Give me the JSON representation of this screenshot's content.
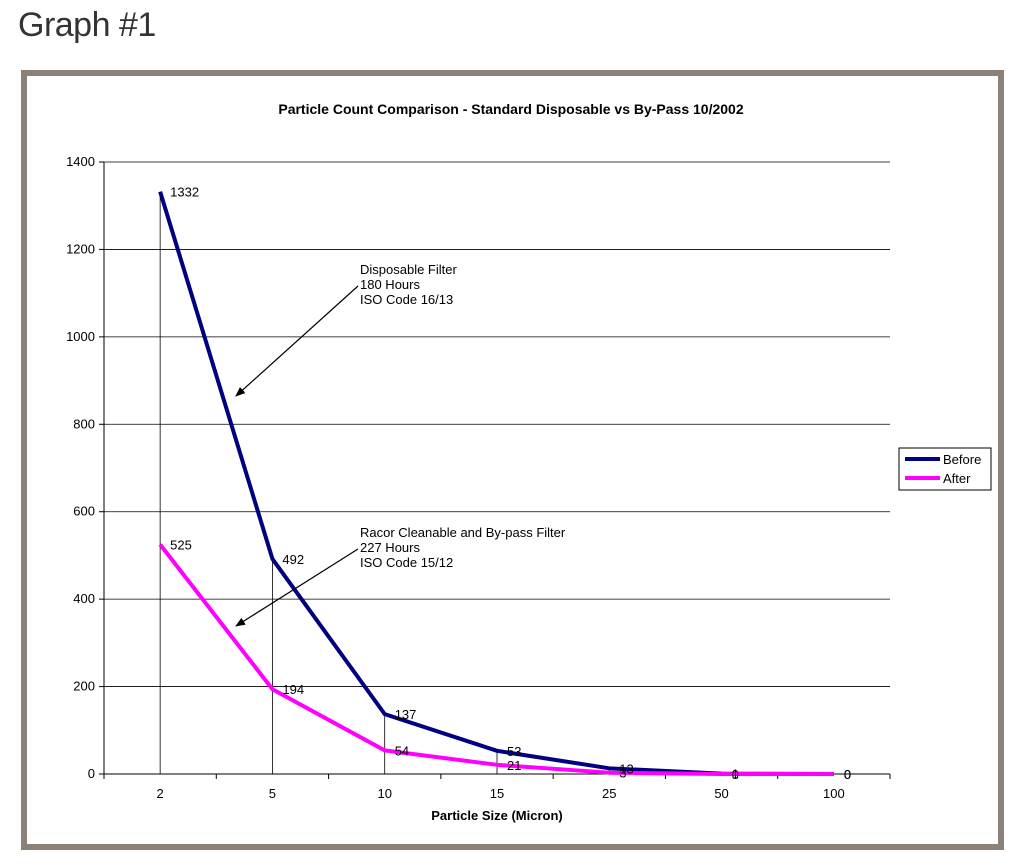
{
  "page": {
    "heading": "Graph #1"
  },
  "chart_data": {
    "type": "line",
    "title": "Particle Count Comparison - Standard Disposable vs By-Pass 10/2002",
    "xlabel": "Particle Size (Micron)",
    "ylabel": "",
    "categories": [
      "2",
      "5",
      "10",
      "15",
      "25",
      "50",
      "100"
    ],
    "ylim": [
      0,
      1400
    ],
    "yticks": [
      0,
      200,
      400,
      600,
      800,
      1000,
      1200,
      1400
    ],
    "grid": true,
    "legend_position": "right",
    "series": [
      {
        "name": "Before",
        "color": "#000080",
        "values": [
          1332,
          492,
          137,
          53,
          13,
          1,
          0
        ]
      },
      {
        "name": "After",
        "color": "#ff00ff",
        "values": [
          525,
          194,
          54,
          21,
          3,
          0,
          0
        ]
      }
    ],
    "annotations": [
      {
        "lines": [
          "Disposable Filter",
          "180 Hours",
          "ISO Code 16/13"
        ]
      },
      {
        "lines": [
          "Racor Cleanable and By-pass Filter",
          "227 Hours",
          "ISO Code 15/12"
        ]
      }
    ]
  }
}
